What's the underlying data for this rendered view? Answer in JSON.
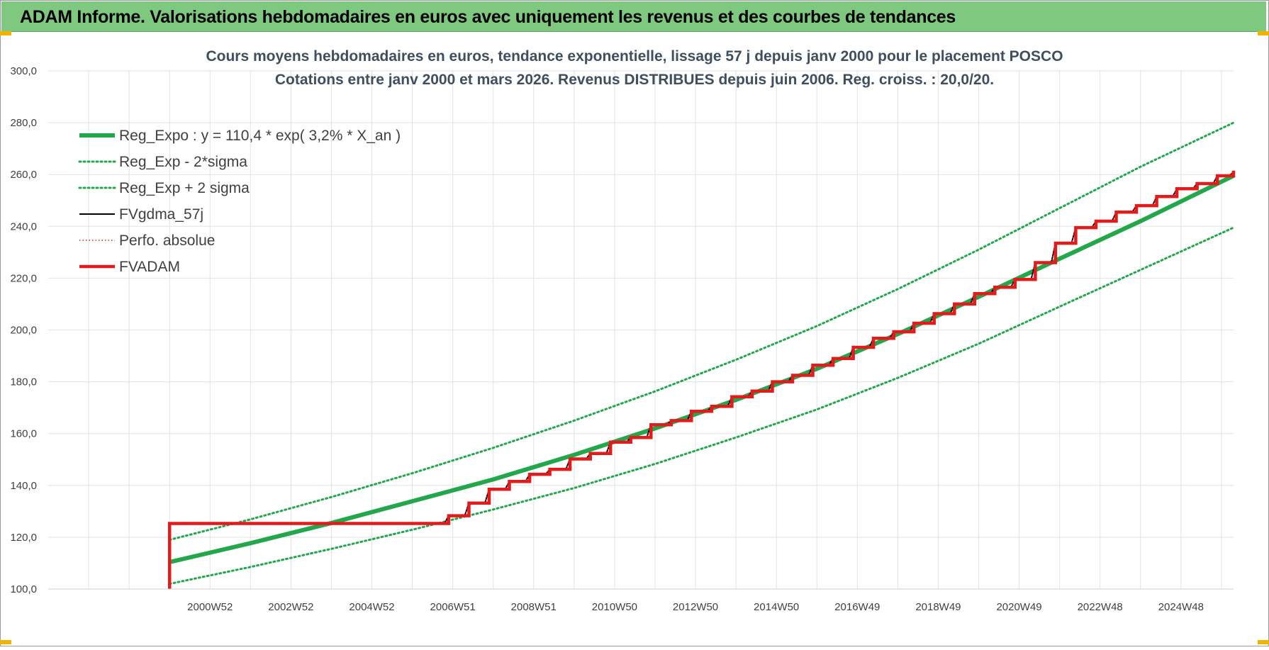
{
  "header": {
    "title": "ADAM Informe. Valorisations hebdomadaires en euros avec uniquement les revenus et des courbes de tendances"
  },
  "colors": {
    "banner": "#7fc87f",
    "trend": "#22a84a",
    "band": "#22a84a",
    "fvgdma": "#000000",
    "perfo": "#d81e1e",
    "fvadam": "#e31b1b"
  },
  "chart_data": {
    "type": "line",
    "title": "Cours moyens hebdomadaires en euros, tendance exponentielle, lissage 57 j depuis janv 2000 pour le placement POSCO",
    "subtitle": "Cotations entre janv 2000 et mars 2026. Revenus DISTRIBUES depuis juin 2006. Reg. croiss. : 20,0/20.",
    "ylim": [
      100,
      300
    ],
    "y_ticks": [
      "300,0",
      "280,0",
      "260,0",
      "240,0",
      "220,0",
      "200,0",
      "180,0",
      "160,0",
      "140,0",
      "120,0",
      "100,0"
    ],
    "x_ticks": [
      "2000W52",
      "2002W52",
      "2004W52",
      "2006W51",
      "2008W51",
      "2010W50",
      "2012W50",
      "2014W50",
      "2016W49",
      "2018W49",
      "2020W49",
      "2022W48",
      "2024W48"
    ],
    "xlim": [
      1997.0,
      2026.3
    ],
    "grid": true,
    "legend_position": "top-left",
    "legend": [
      "Reg_Expo : y = 110,4 * exp( 3,2% *  X_an )",
      "Reg_Exp - 2*sigma",
      "Reg_Exp + 2 sigma",
      "FVgdma_57j",
      "Perfo. absolue",
      "FVADAM"
    ],
    "series": [
      {
        "name": "Reg_Expo : y = 110,4 * exp( 3,2% *  X_an )",
        "style": "thick",
        "x": [
          2000.0,
          2002.0,
          2004.0,
          2006.0,
          2008.0,
          2010.0,
          2012.0,
          2014.0,
          2016.0,
          2018.0,
          2020.0,
          2022.0,
          2024.0,
          2026.3
        ],
        "y": [
          110.4,
          117.7,
          125.5,
          133.9,
          142.3,
          151.8,
          162.0,
          173.0,
          185.0,
          198.4,
          212.8,
          227.5,
          242.0,
          259.5
        ]
      },
      {
        "name": "Reg_Exp - 2*sigma",
        "style": "dotted",
        "x": [
          2000.0,
          2002.0,
          2004.0,
          2006.0,
          2008.0,
          2010.0,
          2012.0,
          2014.0,
          2016.0,
          2018.0,
          2020.0,
          2022.0,
          2024.0,
          2026.3
        ],
        "y": [
          102.0,
          108.5,
          115.5,
          122.9,
          130.7,
          139.0,
          148.3,
          158.5,
          169.3,
          181.5,
          194.7,
          209.0,
          223.2,
          239.5
        ]
      },
      {
        "name": "Reg_Exp + 2 sigma",
        "style": "dotted",
        "x": [
          2000.0,
          2002.0,
          2004.0,
          2006.0,
          2008.0,
          2010.0,
          2012.0,
          2014.0,
          2016.0,
          2018.0,
          2020.0,
          2022.0,
          2024.0,
          2026.3
        ],
        "y": [
          119.0,
          126.9,
          135.5,
          144.7,
          154.5,
          165.0,
          176.3,
          188.5,
          201.5,
          215.8,
          231.0,
          247.0,
          263.0,
          280.0
        ]
      },
      {
        "name": "FVgdma_57j",
        "style": "thin",
        "x": [
          2000.0,
          2006.4,
          2006.9,
          2007.4,
          2007.9,
          2008.4,
          2008.9,
          2009.4,
          2009.9,
          2010.4,
          2010.9,
          2011.4,
          2011.9,
          2012.4,
          2012.9,
          2013.4,
          2013.9,
          2014.4,
          2014.9,
          2015.4,
          2015.9,
          2016.4,
          2016.9,
          2017.4,
          2017.9,
          2018.4,
          2018.9,
          2019.4,
          2019.9,
          2020.4,
          2020.9,
          2021.4,
          2021.9,
          2022.4,
          2022.9,
          2023.4,
          2023.9,
          2024.4,
          2024.9,
          2025.4,
          2025.9,
          2026.3
        ],
        "y": [
          125.0,
          125.3,
          128.3,
          133.2,
          138.5,
          141.5,
          144.3,
          146.2,
          150.2,
          152.3,
          156.7,
          158.5,
          163.4,
          165.0,
          168.6,
          170.5,
          174.2,
          176.4,
          180.0,
          182.5,
          186.4,
          189.0,
          193.3,
          196.8,
          199.3,
          202.6,
          206.3,
          210.0,
          214.0,
          216.5,
          219.5,
          226.0,
          233.5,
          239.5,
          242.0,
          245.5,
          248.0,
          251.5,
          254.5,
          256.5,
          259.5,
          261.0
        ]
      },
      {
        "name": "Perfo. absolue",
        "style": "dotted-thin",
        "x": [
          2000.0,
          2006.4,
          2006.9,
          2007.4,
          2007.9,
          2008.4,
          2008.9,
          2009.4,
          2009.9,
          2010.4,
          2010.9,
          2011.4,
          2011.9,
          2012.4,
          2012.9,
          2013.4,
          2013.9,
          2014.4,
          2014.9,
          2015.4,
          2015.9,
          2016.4,
          2016.9,
          2017.4,
          2017.9,
          2018.4,
          2018.9,
          2019.4,
          2019.9,
          2020.4,
          2020.9,
          2021.4,
          2021.9,
          2022.4,
          2022.9,
          2023.4,
          2023.9,
          2024.4,
          2024.9,
          2025.4,
          2025.9,
          2026.3
        ],
        "y": [
          125.0,
          125.3,
          128.3,
          133.2,
          138.5,
          141.5,
          144.3,
          146.2,
          150.2,
          152.3,
          156.7,
          158.5,
          163.4,
          165.0,
          168.6,
          170.5,
          174.2,
          176.4,
          180.0,
          182.5,
          186.4,
          189.0,
          193.3,
          196.8,
          199.3,
          202.6,
          206.3,
          210.0,
          214.0,
          216.5,
          219.5,
          226.0,
          233.5,
          239.5,
          242.0,
          245.5,
          248.0,
          251.5,
          254.5,
          256.5,
          259.5,
          261.0
        ]
      },
      {
        "name": "FVADAM",
        "style": "thick-step",
        "x": [
          2000.0,
          2000.0,
          2006.4,
          2006.9,
          2007.4,
          2007.9,
          2008.4,
          2008.9,
          2009.4,
          2009.9,
          2010.4,
          2010.9,
          2011.4,
          2011.9,
          2012.4,
          2012.9,
          2013.4,
          2013.9,
          2014.4,
          2014.9,
          2015.4,
          2015.9,
          2016.4,
          2016.9,
          2017.4,
          2017.9,
          2018.4,
          2018.9,
          2019.4,
          2019.9,
          2020.4,
          2020.9,
          2021.4,
          2021.9,
          2022.4,
          2022.9,
          2023.4,
          2023.9,
          2024.4,
          2024.9,
          2025.4,
          2025.9,
          2026.3
        ],
        "y": [
          100.0,
          125.3,
          125.3,
          128.3,
          133.2,
          138.5,
          141.5,
          144.3,
          146.2,
          150.2,
          152.3,
          156.7,
          158.5,
          163.4,
          165.0,
          168.6,
          170.5,
          174.2,
          176.4,
          180.0,
          182.5,
          186.4,
          189.0,
          193.3,
          196.8,
          199.3,
          202.6,
          206.3,
          210.0,
          214.0,
          216.5,
          219.5,
          226.0,
          233.5,
          239.5,
          242.0,
          245.5,
          248.0,
          251.5,
          254.5,
          256.5,
          259.5,
          261.5
        ]
      }
    ]
  }
}
